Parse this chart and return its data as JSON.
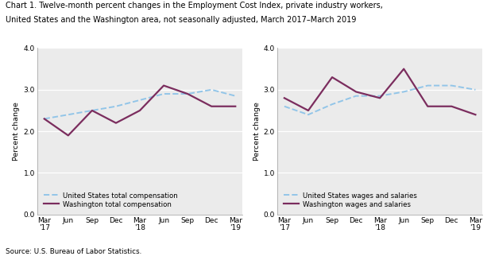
{
  "title_line1": "Chart 1. Twelve-month percent changes in the Employment Cost Index, private industry workers,",
  "title_line2": "United States and the Washington area, not seasonally adjusted, March 2017–March 2019",
  "source": "Source: U.S. Bureau of Labor Statistics.",
  "ylabel": "Percent change",
  "x_labels": [
    "Mar\n'17",
    "Jun",
    "Sep",
    "Dec",
    "Mar\n'18",
    "Jun",
    "Sep",
    "Dec",
    "Mar\n'19"
  ],
  "x_ticks": [
    0,
    1,
    2,
    3,
    4,
    5,
    6,
    7,
    8
  ],
  "ylim": [
    0.0,
    4.0
  ],
  "yticks": [
    0.0,
    1.0,
    2.0,
    3.0,
    4.0
  ],
  "left": {
    "us_dashed": [
      2.3,
      2.4,
      2.5,
      2.6,
      2.75,
      2.9,
      2.9,
      3.0,
      2.85
    ],
    "wash_solid": [
      2.3,
      1.9,
      2.5,
      2.2,
      2.5,
      3.1,
      2.9,
      2.6,
      2.6
    ],
    "legend1": "United States total compensation",
    "legend2": "Washington total compensation"
  },
  "right": {
    "us_dashed": [
      2.6,
      2.4,
      2.65,
      2.85,
      2.85,
      2.95,
      3.1,
      3.1,
      3.0
    ],
    "wash_solid": [
      2.8,
      2.5,
      3.3,
      2.95,
      2.8,
      3.5,
      2.6,
      2.6,
      2.4
    ],
    "legend1": "United States wages and salaries",
    "legend2": "Washington wages and salaries"
  },
  "us_color": "#92C5E8",
  "wash_color": "#7B2D5E",
  "background_color": "#EBEBEB",
  "grid_color": "#FFFFFF",
  "spine_color": "#AAAAAA"
}
